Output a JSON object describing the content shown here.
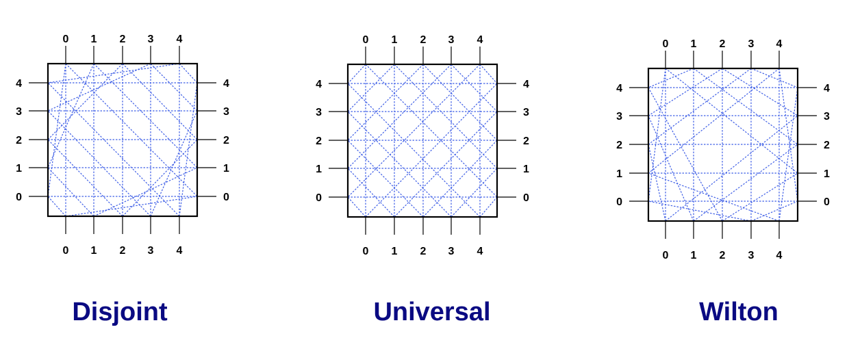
{
  "pin_labels": [
    "0",
    "1",
    "2",
    "3",
    "4"
  ],
  "colors": {
    "box": "#000000",
    "wire": "#3f5fe6",
    "title": "#0a0a82"
  },
  "switch_boxes": [
    {
      "title": "Disjoint"
    },
    {
      "title": "Universal"
    },
    {
      "title": "Wilton"
    }
  ]
}
